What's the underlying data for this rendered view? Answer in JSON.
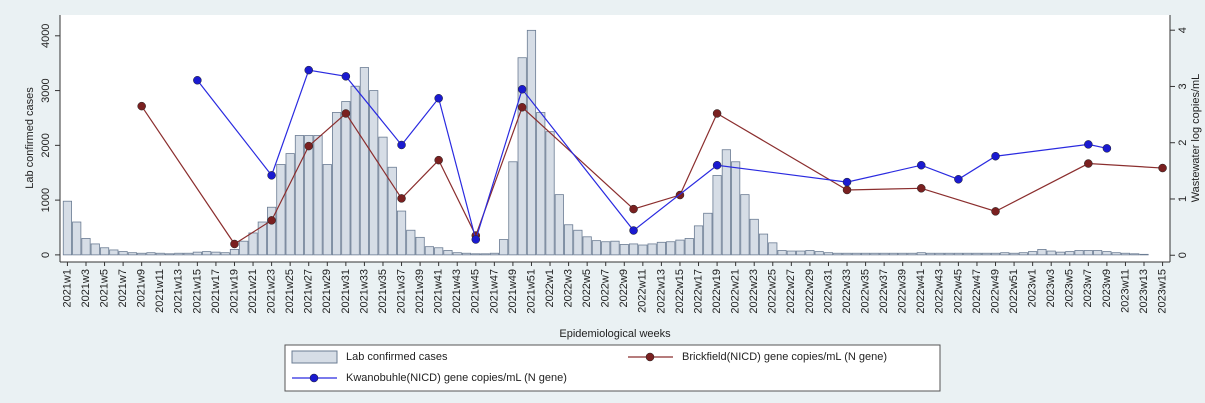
{
  "chart_data": {
    "type": "bar",
    "y_label": "Lab confirmed cases",
    "y2_label": "Wastewater log copies/mL",
    "x_label": "Epidemiological weeks",
    "connect_gaps": true,
    "categories": [
      "2021w1",
      null,
      "2021w3",
      null,
      "2021w5",
      null,
      "2021w7",
      null,
      "2021w9",
      null,
      "2021w11",
      null,
      "2021w13",
      null,
      "2021w15",
      null,
      "2021w17",
      null,
      "2021w19",
      null,
      "2021w21",
      null,
      "2021w23",
      null,
      "2021w25",
      null,
      "2021w27",
      null,
      "2021w29",
      null,
      "2021w31",
      null,
      "2021w33",
      null,
      "2021w35",
      null,
      "2021w37",
      null,
      "2021w39",
      null,
      "2021w41",
      null,
      "2021w43",
      null,
      "2021w45",
      null,
      "2021w47",
      null,
      "2021w49",
      null,
      "2021w51",
      null,
      "2022w1",
      null,
      "2022w3",
      null,
      "2022w5",
      null,
      "2022w7",
      null,
      "2022w9",
      null,
      "2022w11",
      null,
      "2022w13",
      null,
      "2022w15",
      null,
      "2022w17",
      null,
      "2022w19",
      null,
      "2022w21",
      null,
      "2022w23",
      null,
      "2022w25",
      null,
      "2022w27",
      null,
      "2022w29",
      null,
      "2022w31",
      null,
      "2022w33",
      null,
      "2022w35",
      null,
      "2022w37",
      null,
      "2022w39",
      null,
      "2022w41",
      null,
      "2022w43",
      null,
      "2022w45",
      null,
      "2022w47",
      null,
      "2022w49",
      null,
      "2022w51",
      null,
      "2023w1",
      null,
      "2023w3",
      null,
      "2023w5",
      null,
      "2023w7",
      null,
      "2023w9",
      null,
      "2023w11",
      null,
      "2023w13",
      null,
      "2023w15"
    ],
    "series": [
      {
        "name": "Lab confirmed cases",
        "type": "bar",
        "color": "#d6dde6",
        "edge": "#6b7c93",
        "values": [
          980,
          600,
          300,
          200,
          130,
          90,
          60,
          40,
          30,
          40,
          30,
          20,
          30,
          30,
          50,
          60,
          50,
          40,
          100,
          250,
          400,
          600,
          870,
          1650,
          1850,
          2180,
          2180,
          2180,
          1650,
          2600,
          2800,
          3080,
          3420,
          3000,
          2150,
          1600,
          800,
          450,
          320,
          150,
          130,
          80,
          40,
          30,
          20,
          20,
          30,
          280,
          1700,
          3600,
          4100,
          2600,
          2250,
          1100,
          550,
          450,
          330,
          260,
          240,
          250,
          190,
          200,
          180,
          200,
          230,
          240,
          270,
          300,
          530,
          760,
          1450,
          1920,
          1700,
          1100,
          650,
          380,
          220,
          80,
          70,
          70,
          80,
          60,
          40,
          30,
          30,
          30,
          30,
          30,
          30,
          30,
          30,
          30,
          40,
          30,
          30,
          30,
          30,
          30,
          30,
          30,
          30,
          40,
          30,
          40,
          60,
          100,
          70,
          50,
          60,
          80,
          80,
          80,
          60,
          40,
          30,
          20,
          10,
          null,
          null
        ]
      },
      {
        "name": "Brickfield(NICD) gene copies/mL (N gene)",
        "type": "line",
        "axis": "y2",
        "color": "#8b2e2e",
        "marker": "#7a2020",
        "values": [
          null,
          null,
          null,
          null,
          null,
          null,
          null,
          null,
          2.65,
          null,
          null,
          null,
          null,
          null,
          null,
          null,
          null,
          null,
          0.2,
          null,
          null,
          null,
          0.62,
          null,
          null,
          null,
          1.94,
          null,
          null,
          null,
          2.52,
          null,
          null,
          null,
          null,
          null,
          1.01,
          null,
          null,
          null,
          1.69,
          null,
          null,
          null,
          0.35,
          null,
          null,
          null,
          null,
          2.63,
          null,
          null,
          null,
          null,
          null,
          null,
          null,
          null,
          null,
          null,
          null,
          0.82,
          null,
          null,
          null,
          null,
          1.07,
          null,
          null,
          null,
          2.52,
          null,
          null,
          null,
          null,
          null,
          null,
          null,
          null,
          null,
          null,
          null,
          null,
          null,
          1.16,
          null,
          null,
          null,
          null,
          null,
          null,
          null,
          1.19,
          null,
          null,
          null,
          null,
          null,
          null,
          null,
          0.78,
          null,
          null,
          null,
          null,
          null,
          null,
          null,
          null,
          null,
          1.63,
          null,
          null,
          null,
          null,
          null,
          null,
          null,
          1.55
        ]
      },
      {
        "name": "Kwanobuhle(NICD) gene copies/mL (N gene)",
        "type": "line",
        "axis": "y2",
        "color": "#2a2ae0",
        "marker": "#1a1ad0",
        "values": [
          null,
          null,
          null,
          null,
          null,
          null,
          null,
          null,
          null,
          null,
          null,
          null,
          null,
          null,
          3.11,
          null,
          null,
          null,
          null,
          null,
          null,
          null,
          1.42,
          null,
          null,
          null,
          3.29,
          null,
          null,
          null,
          3.18,
          null,
          null,
          null,
          null,
          null,
          1.96,
          null,
          null,
          null,
          2.79,
          null,
          null,
          null,
          0.28,
          null,
          null,
          null,
          null,
          2.95,
          null,
          null,
          null,
          null,
          null,
          null,
          null,
          null,
          null,
          null,
          null,
          0.44,
          null,
          null,
          null,
          null,
          null,
          null,
          null,
          null,
          1.6,
          null,
          null,
          null,
          null,
          null,
          null,
          null,
          null,
          null,
          null,
          null,
          null,
          null,
          1.3,
          null,
          null,
          null,
          null,
          null,
          null,
          null,
          1.6,
          null,
          null,
          null,
          1.35,
          null,
          null,
          null,
          1.76,
          null,
          null,
          null,
          null,
          null,
          null,
          null,
          null,
          null,
          1.97,
          null,
          1.9,
          null,
          null,
          null,
          null,
          null,
          null
        ]
      }
    ],
    "ylim": [
      -130,
      4380
    ],
    "yticks": [
      0,
      1000,
      2000,
      3000,
      4000
    ],
    "y2lim": [
      -0.12,
      4.27
    ],
    "y2ticks": [
      0,
      1,
      2,
      3,
      4
    ],
    "grid": false
  }
}
